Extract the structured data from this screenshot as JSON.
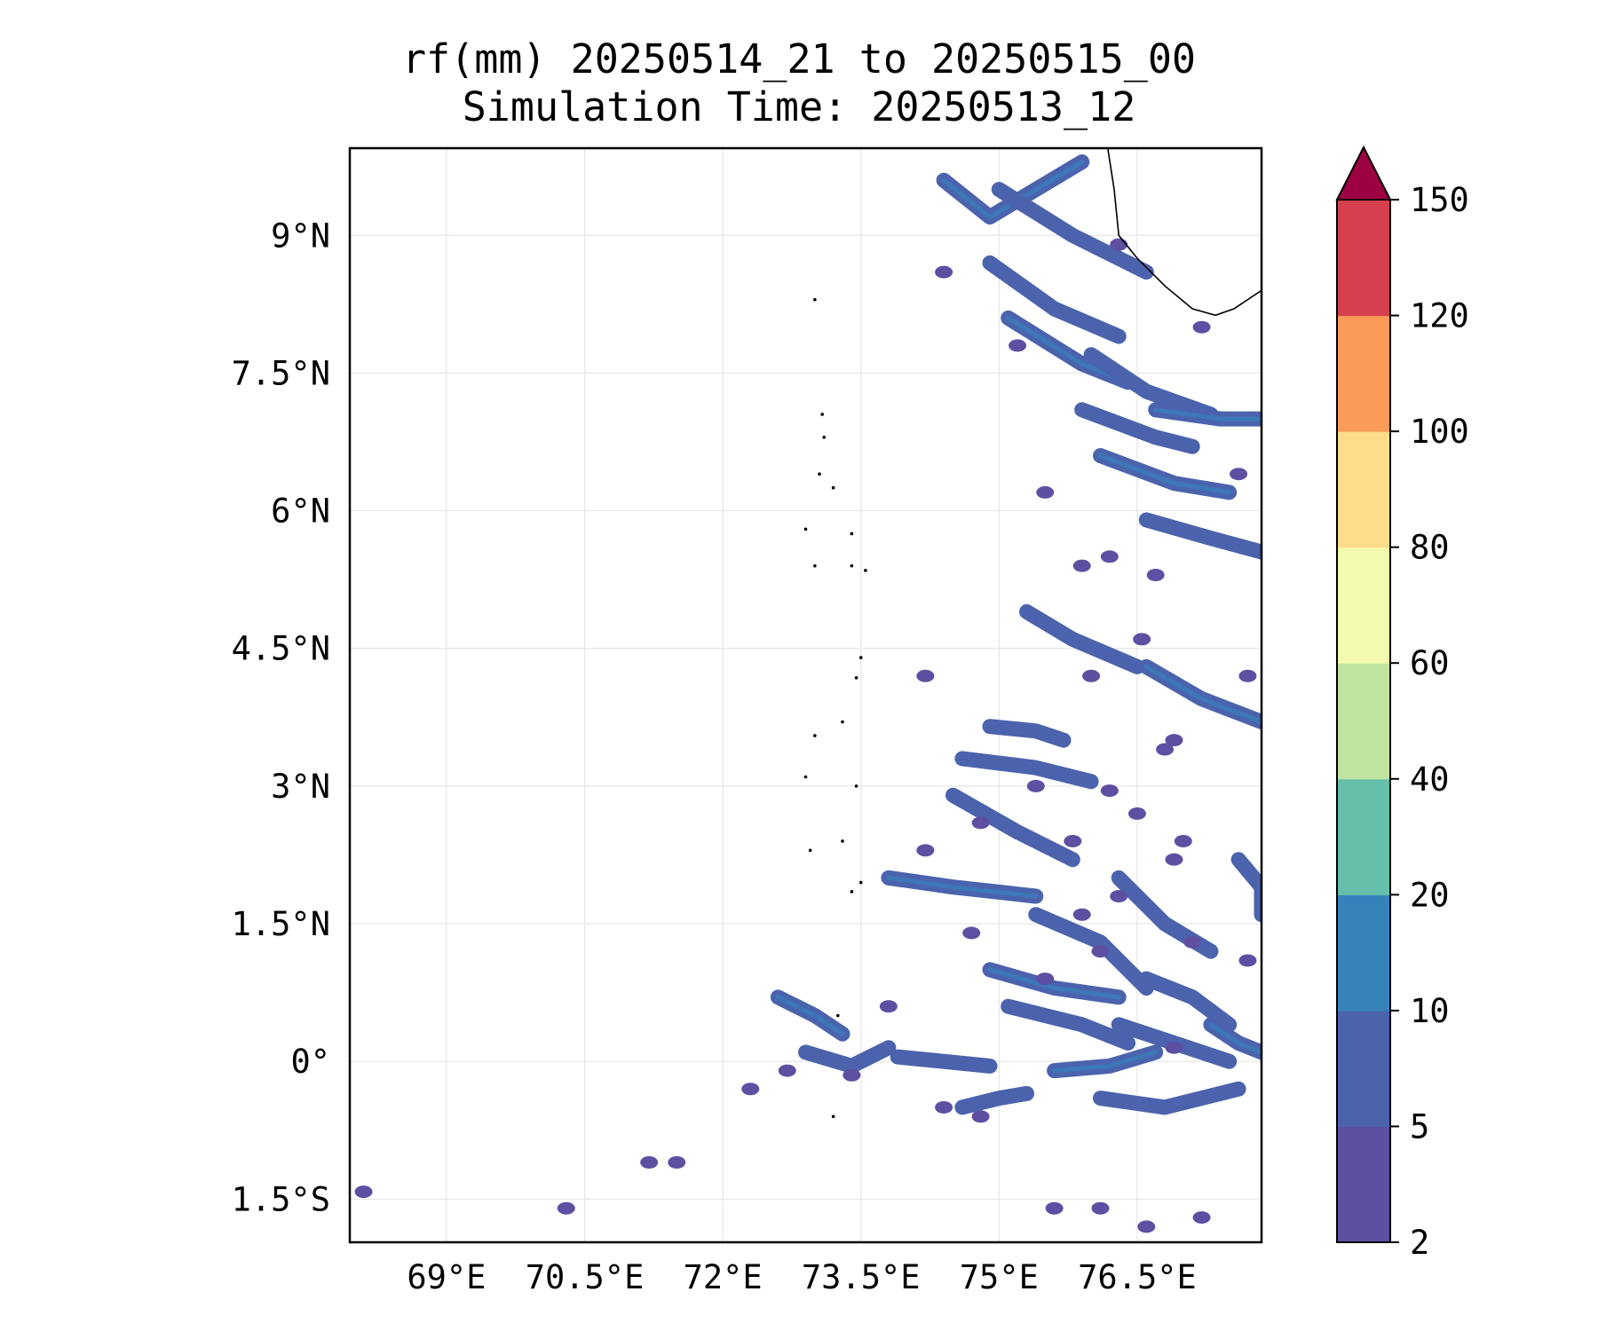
{
  "title": {
    "line1": "rf(mm) 20250514_21 to 20250515_00",
    "line2": "Simulation Time: 20250513_12"
  },
  "map": {
    "lon_range": [
      67.95,
      77.85
    ],
    "lat_range": [
      -1.97,
      9.95
    ],
    "lon_ticks": [
      69.0,
      70.5,
      72.0,
      73.5,
      75.0,
      76.5
    ],
    "lon_tick_labels": [
      "69°E",
      "70.5°E",
      "72°E",
      "73.5°E",
      "75°E",
      "76.5°E"
    ],
    "lat_ticks": [
      9.0,
      7.5,
      6.0,
      4.5,
      3.0,
      1.5,
      0.0,
      -1.5
    ],
    "lat_tick_labels": [
      "9°N",
      "7.5°N",
      "6°N",
      "4.5°N",
      "3°N",
      "1.5°N",
      "0°",
      "1.5°S"
    ],
    "grid": true,
    "coastline": [
      [
        76.18,
        9.95
      ],
      [
        76.25,
        9.5
      ],
      [
        76.3,
        9.0
      ],
      [
        76.5,
        8.75
      ],
      [
        76.8,
        8.45
      ],
      [
        77.1,
        8.2
      ],
      [
        77.35,
        8.13
      ],
      [
        77.55,
        8.2
      ],
      [
        77.85,
        8.4
      ]
    ],
    "islands": [
      [
        73.0,
        8.3
      ],
      [
        73.08,
        7.05
      ],
      [
        73.1,
        6.8
      ],
      [
        73.05,
        6.4
      ],
      [
        73.2,
        6.25
      ],
      [
        72.9,
        5.8
      ],
      [
        73.4,
        5.75
      ],
      [
        73.0,
        5.4
      ],
      [
        73.4,
        5.4
      ],
      [
        73.55,
        5.35
      ],
      [
        73.5,
        4.4
      ],
      [
        73.45,
        4.18
      ],
      [
        73.3,
        3.7
      ],
      [
        73.0,
        3.55
      ],
      [
        72.9,
        3.1
      ],
      [
        73.45,
        3.0
      ],
      [
        73.3,
        2.4
      ],
      [
        72.95,
        2.3
      ],
      [
        73.5,
        1.95
      ],
      [
        73.4,
        1.85
      ],
      [
        73.25,
        0.5
      ],
      [
        73.2,
        -0.6
      ]
    ],
    "rain_bands": [
      [
        [
          74.4,
          9.6
        ],
        [
          74.9,
          9.2
        ],
        [
          75.9,
          9.8
        ]
      ],
      [
        [
          75.0,
          9.5
        ],
        [
          75.8,
          9.0
        ],
        [
          76.6,
          8.6
        ]
      ],
      [
        [
          74.9,
          8.7
        ],
        [
          75.6,
          8.2
        ],
        [
          76.3,
          7.9
        ]
      ],
      [
        [
          75.1,
          8.1
        ],
        [
          75.9,
          7.6
        ],
        [
          76.4,
          7.4
        ]
      ],
      [
        [
          76.0,
          7.7
        ],
        [
          76.6,
          7.3
        ],
        [
          77.3,
          7.05
        ]
      ],
      [
        [
          75.9,
          7.1
        ],
        [
          76.7,
          6.8
        ],
        [
          77.1,
          6.7
        ]
      ],
      [
        [
          76.1,
          6.6
        ],
        [
          76.9,
          6.3
        ],
        [
          77.5,
          6.2
        ]
      ],
      [
        [
          76.6,
          5.9
        ],
        [
          77.3,
          5.7
        ],
        [
          77.85,
          5.55
        ]
      ],
      [
        [
          75.3,
          4.9
        ],
        [
          75.8,
          4.6
        ],
        [
          76.5,
          4.3
        ]
      ],
      [
        [
          76.6,
          4.3
        ],
        [
          77.2,
          3.95
        ],
        [
          77.85,
          3.7
        ]
      ],
      [
        [
          74.6,
          3.3
        ],
        [
          75.4,
          3.2
        ],
        [
          76.0,
          3.05
        ]
      ],
      [
        [
          74.5,
          2.9
        ],
        [
          75.2,
          2.5
        ],
        [
          75.8,
          2.2
        ]
      ],
      [
        [
          73.8,
          2.0
        ],
        [
          74.5,
          1.9
        ],
        [
          75.4,
          1.8
        ]
      ],
      [
        [
          76.3,
          2.0
        ],
        [
          76.8,
          1.5
        ],
        [
          77.3,
          1.2
        ]
      ],
      [
        [
          75.4,
          1.6
        ],
        [
          76.1,
          1.3
        ],
        [
          76.6,
          0.8
        ]
      ],
      [
        [
          74.9,
          1.0
        ],
        [
          75.6,
          0.8
        ],
        [
          76.3,
          0.7
        ]
      ],
      [
        [
          75.1,
          0.6
        ],
        [
          75.9,
          0.4
        ],
        [
          76.4,
          0.2
        ]
      ],
      [
        [
          76.3,
          0.4
        ],
        [
          76.9,
          0.2
        ],
        [
          77.5,
          0.0
        ]
      ],
      [
        [
          72.6,
          0.7
        ],
        [
          73.0,
          0.5
        ],
        [
          73.3,
          0.3
        ]
      ],
      [
        [
          72.9,
          0.1
        ],
        [
          73.4,
          -0.05
        ],
        [
          73.8,
          0.15
        ]
      ],
      [
        [
          73.9,
          0.05
        ],
        [
          74.4,
          0.0
        ],
        [
          74.9,
          -0.05
        ]
      ],
      [
        [
          75.6,
          -0.1
        ],
        [
          76.2,
          -0.05
        ],
        [
          76.7,
          0.1
        ]
      ],
      [
        [
          76.1,
          -0.4
        ],
        [
          76.8,
          -0.5
        ],
        [
          77.6,
          -0.3
        ]
      ],
      [
        [
          74.6,
          -0.5
        ],
        [
          75.0,
          -0.4
        ],
        [
          75.3,
          -0.35
        ]
      ],
      [
        [
          77.3,
          0.4
        ],
        [
          77.6,
          0.2
        ],
        [
          77.85,
          0.1
        ]
      ],
      [
        [
          77.6,
          2.2
        ],
        [
          77.85,
          1.9
        ],
        [
          77.85,
          1.6
        ]
      ],
      [
        [
          74.9,
          3.65
        ],
        [
          75.4,
          3.6
        ],
        [
          75.7,
          3.5
        ]
      ],
      [
        [
          76.7,
          7.1
        ],
        [
          77.4,
          7.0
        ],
        [
          77.85,
          7.0
        ]
      ],
      [
        [
          76.6,
          0.9
        ],
        [
          77.1,
          0.7
        ],
        [
          77.5,
          0.4
        ]
      ]
    ],
    "rain_blobs": [
      [
        68.1,
        -1.42
      ],
      [
        70.3,
        -1.6
      ],
      [
        71.2,
        -1.1
      ],
      [
        71.5,
        -1.1
      ],
      [
        72.3,
        -0.3
      ],
      [
        72.7,
        -0.1
      ],
      [
        76.2,
        5.5
      ],
      [
        76.55,
        4.6
      ],
      [
        76.0,
        4.2
      ],
      [
        74.2,
        2.3
      ],
      [
        77.0,
        2.4
      ],
      [
        76.3,
        1.8
      ],
      [
        76.5,
        2.7
      ],
      [
        77.1,
        1.3
      ],
      [
        76.9,
        3.5
      ],
      [
        74.8,
        -0.6
      ],
      [
        73.4,
        -0.15
      ],
      [
        74.4,
        -0.5
      ],
      [
        76.1,
        -1.6
      ],
      [
        75.6,
        -1.6
      ],
      [
        77.2,
        8.0
      ],
      [
        76.3,
        8.9
      ],
      [
        75.5,
        6.2
      ],
      [
        75.9,
        5.4
      ],
      [
        76.7,
        5.3
      ],
      [
        77.6,
        6.4
      ],
      [
        77.7,
        4.2
      ],
      [
        75.9,
        1.6
      ],
      [
        74.4,
        8.6
      ],
      [
        75.2,
        7.8
      ],
      [
        74.2,
        4.2
      ],
      [
        76.9,
        2.2
      ],
      [
        75.8,
        2.4
      ],
      [
        76.1,
        1.2
      ],
      [
        75.5,
        0.9
      ],
      [
        74.7,
        1.4
      ],
      [
        76.6,
        -1.8
      ],
      [
        77.2,
        -1.7
      ],
      [
        73.8,
        0.6
      ],
      [
        74.8,
        2.6
      ],
      [
        77.7,
        1.1
      ],
      [
        76.9,
        0.15
      ],
      [
        75.4,
        3.0
      ],
      [
        76.2,
        2.95
      ],
      [
        76.8,
        3.4
      ]
    ]
  },
  "colorbar": {
    "levels": [
      2,
      5,
      10,
      20,
      40,
      60,
      80,
      100,
      120,
      150
    ],
    "tick_labels": [
      "2",
      "5",
      "10",
      "20",
      "40",
      "60",
      "80",
      "100",
      "120",
      "150"
    ],
    "colors": [
      "#5e4fa2",
      "#4b63ad",
      "#3682ba",
      "#65bfaa",
      "#bfe4a0",
      "#f3f9ae",
      "#fddc8c",
      "#fa9c58",
      "#d6404e"
    ],
    "extend_color": "#9e0142"
  }
}
